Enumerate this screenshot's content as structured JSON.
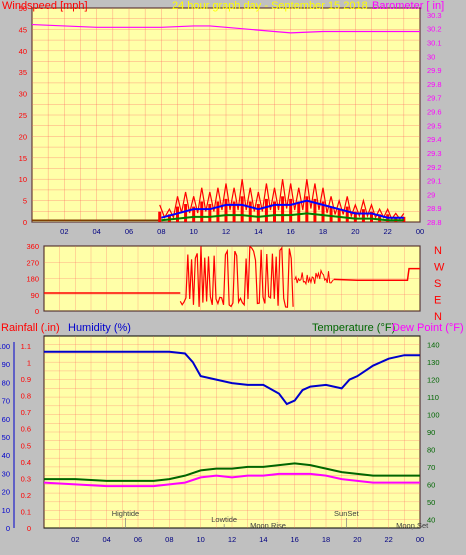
{
  "page": {
    "background": "#c0c0c0",
    "plot_background": "#ffffa8"
  },
  "chart_data": [
    {
      "type": "line",
      "name": "wind-baro",
      "title": "24 hour graph day - September 15 2018",
      "left_label": "Windspeed [mph]",
      "right_label": "Barometer [ in]",
      "x_ticks": [
        "02",
        "04",
        "06",
        "08",
        "10",
        "12",
        "14",
        "16",
        "18",
        "20",
        "22",
        "00"
      ],
      "y_left_ticks": [
        "0",
        "5",
        "10",
        "15",
        "20",
        "25",
        "30",
        "35",
        "40",
        "45",
        "50"
      ],
      "y_left_range": [
        0,
        50
      ],
      "y_right_ticks": [
        "28.8",
        "28.9",
        "29",
        "29.1",
        "29.2",
        "29.3",
        "29.4",
        "29.5",
        "29.6",
        "29.7",
        "29.8",
        "29.9",
        "30",
        "30.1",
        "30.2",
        "30.3"
      ],
      "y_right_range": [
        28.8,
        30.35
      ],
      "grid": true,
      "colors": {
        "left": "#ff0000",
        "right": "#ff00ff",
        "title": "#ffff00",
        "grid": "#ff6060"
      },
      "series": [
        {
          "color": "#ff00ff",
          "axis": "right",
          "x": [
            0,
            2,
            4,
            6,
            8,
            10,
            11,
            12,
            14,
            15,
            16,
            18,
            20,
            22,
            24
          ],
          "y": [
            30.23,
            30.22,
            30.21,
            30.21,
            30.21,
            30.22,
            30.22,
            30.21,
            30.19,
            30.18,
            30.17,
            30.18,
            30.18,
            30.18,
            30.18
          ]
        }
      ],
      "gust_peaks": {
        "x": [
          7.9,
          8.5,
          9,
          9.5,
          10,
          10.5,
          11,
          11.5,
          12,
          12.5,
          13,
          13.5,
          14,
          14.5,
          15,
          15.5,
          16,
          16.5,
          17,
          17.5,
          18,
          18.5,
          19,
          19.5,
          20,
          20.5,
          21,
          21.5,
          22,
          22.5,
          23
        ],
        "y": [
          4,
          3,
          6,
          7,
          6,
          8,
          7,
          8,
          9,
          8,
          10,
          8,
          7,
          9,
          8,
          10,
          9,
          8,
          10,
          9,
          8,
          6,
          5,
          6,
          4,
          5,
          4,
          3,
          3,
          2,
          2
        ]
      },
      "avg_peaks": {
        "x": [
          8,
          9,
          10,
          11,
          12,
          13,
          14,
          15,
          16,
          17,
          18,
          19,
          20,
          21,
          22,
          23
        ],
        "y": [
          1,
          2,
          3,
          3,
          4,
          4,
          3,
          4,
          4,
          5,
          4,
          3,
          2,
          2,
          1,
          1
        ]
      }
    },
    {
      "type": "line",
      "name": "wind-direction",
      "y_ticks": [
        "0",
        "90",
        "180",
        "270",
        "360"
      ],
      "y_range": [
        0,
        360
      ],
      "right_labels": [
        "N",
        "W",
        "S",
        "E",
        "N"
      ],
      "colors": {
        "line": "#ff0000"
      },
      "series": [
        {
          "color": "#ff0000",
          "x": [
            0,
            8.7,
            9,
            16,
            16.5,
            18.5,
            20,
            23.2,
            23.5,
            24
          ],
          "y": [
            100,
            100,
            200,
            230,
            230,
            180,
            170,
            170,
            240,
            240
          ]
        }
      ]
    },
    {
      "type": "line",
      "name": "rain-humidity-temp",
      "left_label": "Rainfall (.in)",
      "left2_label": "Humidity (%)",
      "right_label": "Temperature (°F)",
      "right2_label": "Dew Point (°F)",
      "y_rain_ticks": [
        "0",
        "0.1",
        "0.2",
        "0.3",
        "0.4",
        "0.5",
        "0.6",
        "0.7",
        "0.8",
        "0.9",
        "1",
        "1.1"
      ],
      "y_hum_ticks": [
        "0",
        "10",
        "20",
        "30",
        "40",
        "50",
        "60",
        "70",
        "80",
        "90",
        "100"
      ],
      "y_temp_ticks": [
        "40",
        "50",
        "60",
        "70",
        "80",
        "90",
        "100",
        "110",
        "120",
        "130",
        "140"
      ],
      "y_temp_range": [
        35,
        145
      ],
      "x_ticks": [
        "02",
        "04",
        "06",
        "08",
        "10",
        "12",
        "14",
        "16",
        "18",
        "20",
        "22",
        "00"
      ],
      "colors": {
        "rain": "#ff0000",
        "humidity": "#0000ff",
        "temp": "#008000",
        "dew": "#ff00ff"
      },
      "series": [
        {
          "name": "Humidity",
          "color": "#0000cc",
          "axis": "temp",
          "x": [
            0,
            2,
            4,
            6,
            8,
            9,
            9.5,
            10,
            11,
            12,
            13,
            14,
            15,
            15.5,
            16,
            16.5,
            17,
            18,
            19,
            19.5,
            20,
            21,
            22,
            23,
            24
          ],
          "y": [
            136,
            136,
            136,
            136,
            136,
            135,
            130,
            122,
            120,
            118,
            117,
            117,
            112,
            106,
            108,
            114,
            116,
            117,
            115,
            120,
            122,
            128,
            132,
            134,
            134
          ]
        },
        {
          "name": "Temperature",
          "color": "#006600",
          "axis": "temp",
          "x": [
            0,
            2,
            4,
            6,
            7,
            8,
            9,
            10,
            11,
            12,
            13,
            14,
            15,
            16,
            17,
            18,
            19,
            20,
            21,
            22,
            23,
            24
          ],
          "y": [
            63,
            63,
            62,
            62,
            62,
            63,
            65,
            68,
            69,
            69,
            70,
            70,
            71,
            72,
            71,
            69,
            67,
            66,
            65,
            65,
            65,
            65
          ]
        },
        {
          "name": "Dew Point",
          "color": "#ff00ff",
          "axis": "temp",
          "x": [
            0,
            2,
            4,
            6,
            7,
            8,
            9,
            10,
            11,
            12,
            13,
            14,
            15,
            16,
            17,
            18,
            19,
            20,
            21,
            22,
            23,
            24
          ],
          "y": [
            61,
            60,
            59,
            59,
            59,
            60,
            61,
            64,
            65,
            64,
            65,
            65,
            66,
            66,
            66,
            65,
            63,
            62,
            61,
            61,
            61,
            61
          ]
        }
      ],
      "annotations": [
        {
          "text": "Hightide",
          "x": 5.2,
          "row": 0
        },
        {
          "text": "Lowtide",
          "x": 11.5,
          "row": 1
        },
        {
          "text": "Moon Rise",
          "x": 14.3,
          "row": 2
        },
        {
          "text": "SunSet",
          "x": 19.3,
          "row": 0
        },
        {
          "text": "Moon Set",
          "x": 23.5,
          "row": 2
        }
      ]
    }
  ]
}
